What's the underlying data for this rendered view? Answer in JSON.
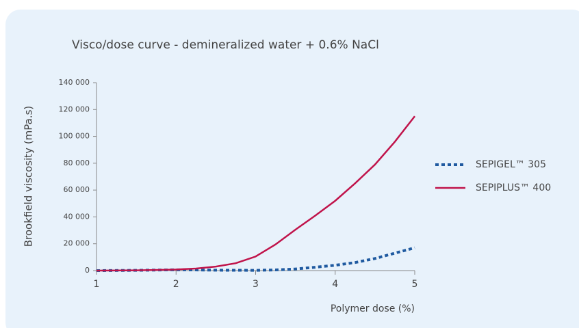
{
  "chart_data": {
    "type": "line",
    "title": "Visco/dose curve - demineralized water + 0.6% NaCl",
    "x_label": "Polymer dose (%)",
    "y_label": "Brookfield viscosity (mPa.s)",
    "x": [
      1,
      1.5,
      2,
      2.25,
      2.5,
      2.75,
      3,
      3.25,
      3.5,
      3.75,
      4,
      4.25,
      4.5,
      4.75,
      5
    ],
    "series": [
      {
        "name": "SEPIGEL™ 305",
        "color": "#1f5aa0",
        "dash": true,
        "values": [
          0,
          200,
          600,
          500,
          300,
          250,
          200,
          500,
          1200,
          2500,
          4000,
          6000,
          9000,
          13000,
          17000
        ]
      },
      {
        "name": "SEPIPLUS™ 400",
        "color": "#c0134a",
        "dash": false,
        "values": [
          0,
          200,
          800,
          1500,
          3000,
          5500,
          10500,
          19500,
          30500,
          41000,
          52000,
          65000,
          79000,
          96000,
          115000
        ]
      }
    ],
    "xlim": [
      1,
      5
    ],
    "xticks": [
      1,
      2,
      3,
      4,
      5
    ],
    "ylim": [
      0,
      140000
    ],
    "yticks": [
      0,
      {
        "value": 20000,
        "label": "20 000"
      },
      {
        "value": 40000,
        "label": "40 000"
      },
      {
        "value": 60000,
        "label": "60 000"
      },
      {
        "value": 80000,
        "label": "80 000"
      },
      {
        "value": 100000,
        "label": "100 000"
      },
      {
        "value": 120000,
        "label": "120 000"
      },
      {
        "value": 140000,
        "label": "140 000"
      }
    ],
    "legend": "right",
    "grid": false
  }
}
